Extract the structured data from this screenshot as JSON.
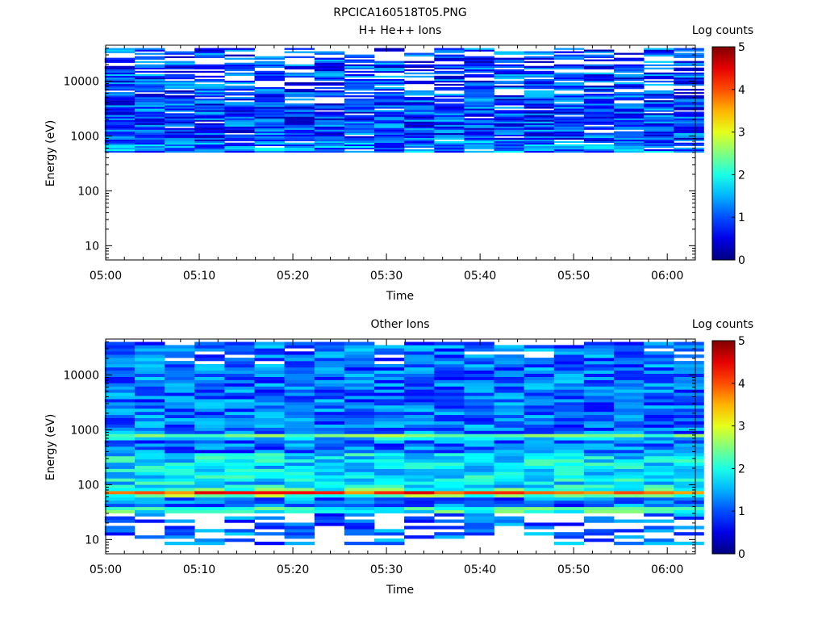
{
  "figure_title": "RPCICA160518T05.PNG",
  "chart_data": [
    {
      "type": "heatmap",
      "title": "H+ He++ Ions",
      "xlabel": "Time",
      "ylabel": "Energy (eV)",
      "x_ticks": [
        "05:00",
        "05:10",
        "05:20",
        "05:30",
        "05:40",
        "05:50",
        "06:00"
      ],
      "y_ticks": [
        "10",
        "100",
        "1000",
        "10000"
      ],
      "y_scale": "log",
      "ylim": [
        5.5,
        45000
      ],
      "x_range_minutes": [
        0,
        63
      ],
      "time_bins_minutes": [
        1.5,
        4.7,
        7.9,
        11.1,
        14.3,
        17.5,
        20.7,
        23.9,
        27.1,
        30.3,
        33.5,
        36.7,
        39.9,
        43.1,
        46.3,
        49.5,
        52.7,
        55.9,
        59.1,
        62.3
      ],
      "energy_range_ev": [
        500,
        40000
      ],
      "colorbar": {
        "label": "Log counts",
        "ticks": [
          "0",
          "1",
          "2",
          "3",
          "4",
          "5"
        ],
        "range": [
          0,
          5
        ],
        "colormap": "jet"
      },
      "levels_description": "sparse blue counts (log counts ~0.2-1.8) between 500 eV and 40 keV"
    },
    {
      "type": "heatmap",
      "title": "Other Ions",
      "xlabel": "Time",
      "ylabel": "Energy (eV)",
      "x_ticks": [
        "05:00",
        "05:10",
        "05:20",
        "05:30",
        "05:40",
        "05:50",
        "06:00"
      ],
      "y_ticks": [
        "10",
        "100",
        "1000",
        "10000"
      ],
      "y_scale": "log",
      "ylim": [
        5.5,
        45000
      ],
      "x_range_minutes": [
        0,
        63
      ],
      "time_bins_minutes": [
        1.5,
        4.7,
        7.9,
        11.1,
        14.3,
        17.5,
        20.7,
        23.9,
        27.1,
        30.3,
        33.5,
        36.7,
        39.9,
        43.1,
        46.3,
        49.5,
        52.7,
        55.9,
        59.1,
        62.3
      ],
      "energy_range_ev": [
        8,
        40000
      ],
      "colorbar": {
        "label": "Log counts",
        "ticks": [
          "0",
          "1",
          "2",
          "3",
          "4",
          "5"
        ],
        "range": [
          0,
          5
        ],
        "colormap": "jet"
      },
      "features": [
        {
          "energy_ev": 70,
          "log_counts": 4.3,
          "note": "intense band"
        },
        {
          "energy_ev": 750,
          "log_counts": 2.9,
          "note": "secondary band"
        }
      ]
    }
  ]
}
